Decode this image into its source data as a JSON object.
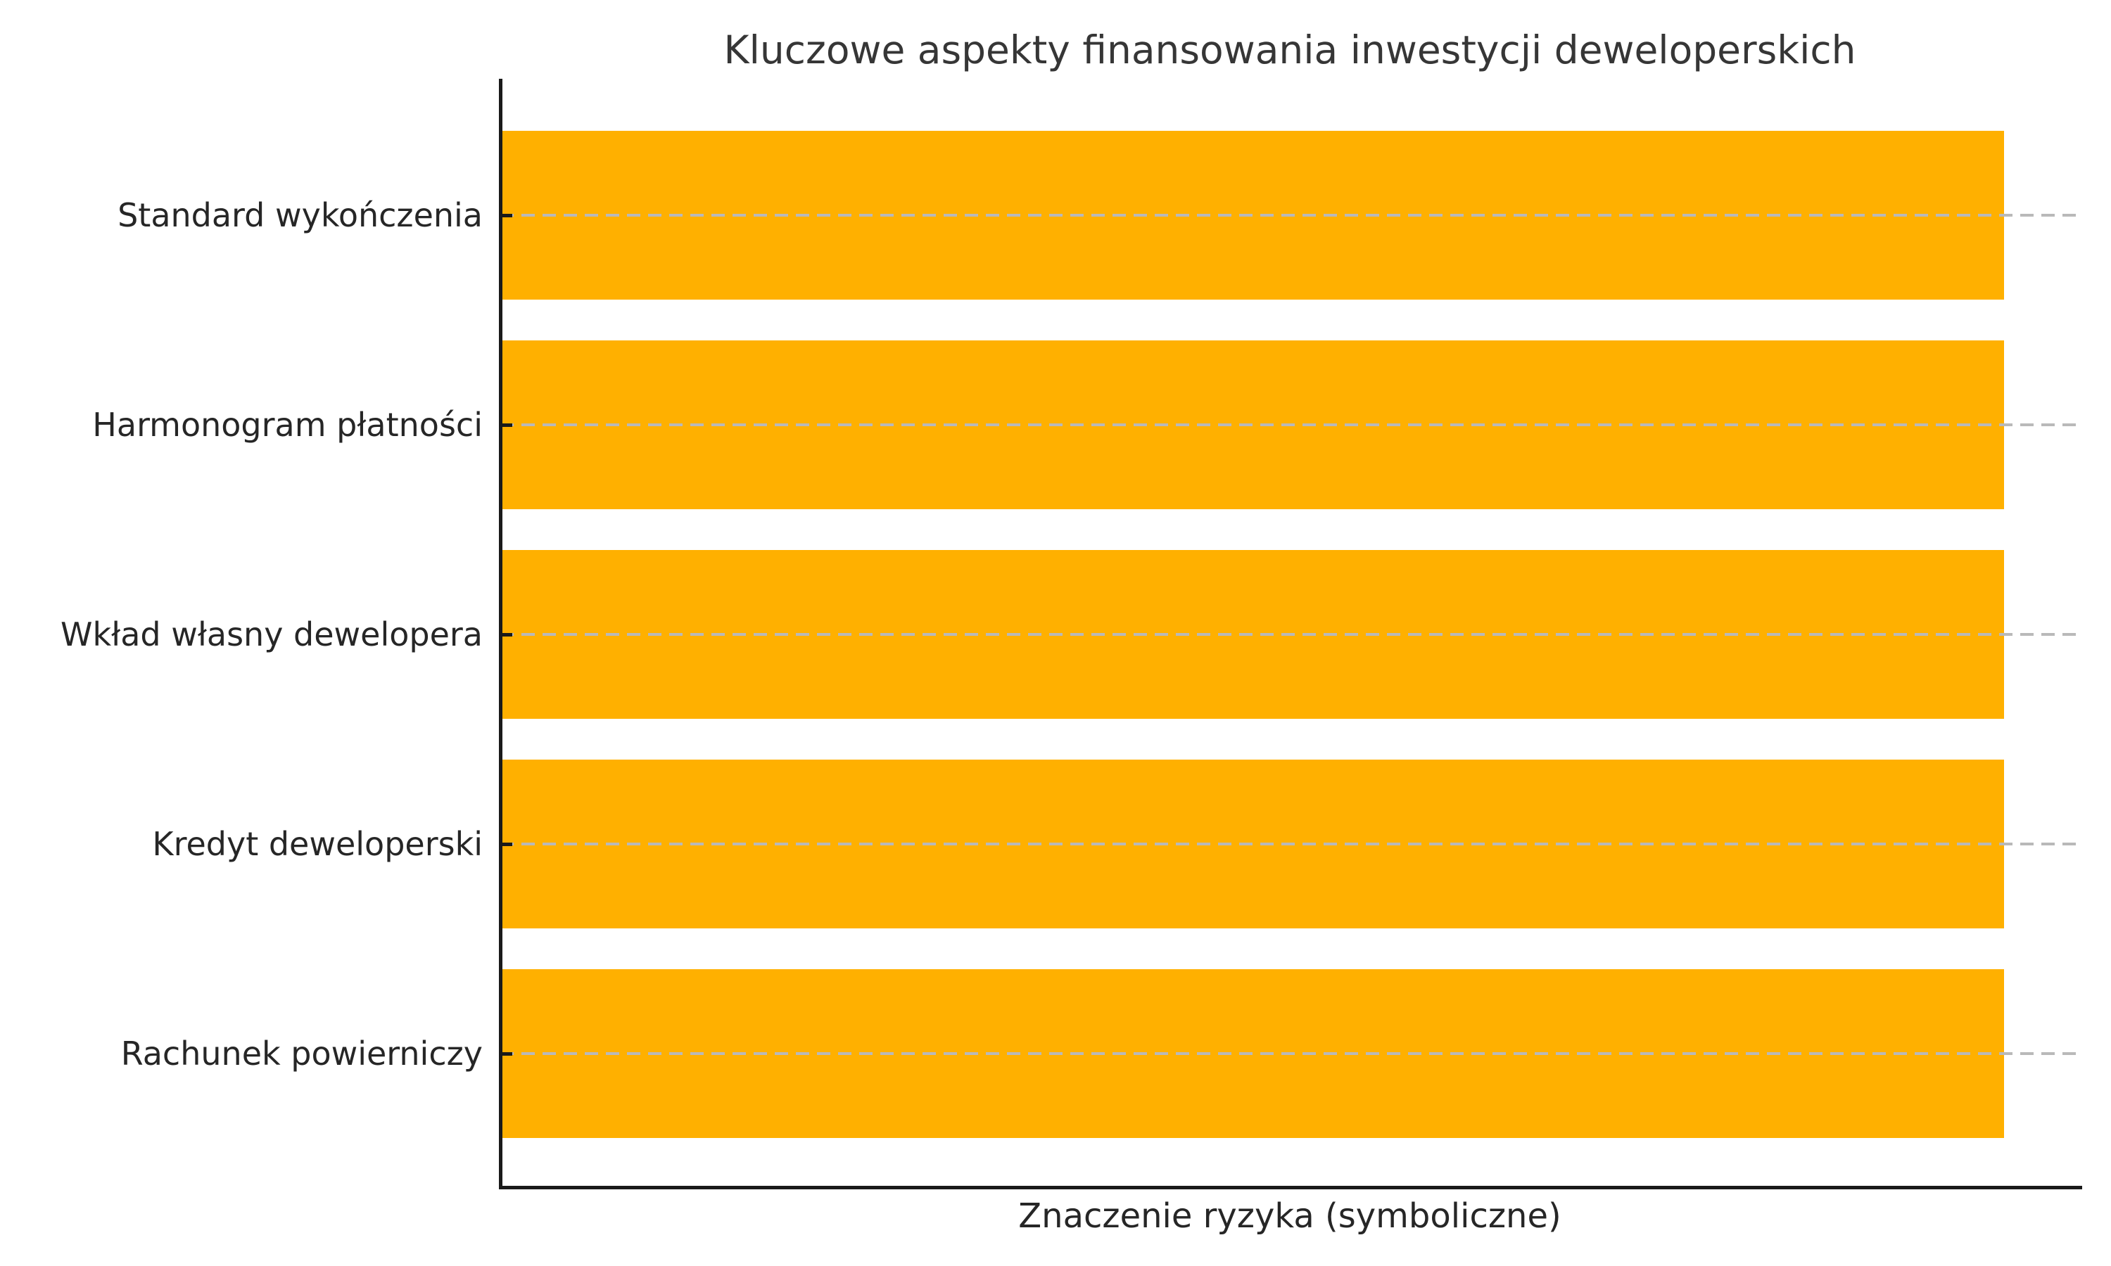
{
  "chart_data": {
    "type": "bar",
    "orientation": "horizontal",
    "title": "Kluczowe aspekty finansowania inwestycji deweloperskich",
    "xlabel": "Znaczenie ryzyka (symboliczne)",
    "ylabel": "",
    "categories": [
      "Standard wykończenia",
      "Harmonogram płatności",
      "Wkład własny dewelopera",
      "Kredyt deweloperski",
      "Rachunek powierniczy"
    ],
    "values": [
      1,
      1,
      1,
      1,
      1
    ],
    "xlim": [
      0,
      1.05
    ],
    "x_tick_labels": [],
    "grid": "horizontal-dashed",
    "legend_position": "none",
    "colors": {
      "bar": "#FFB000",
      "grid": "#b9b9b9",
      "axis": "#1a1a1a",
      "title_text": "#363636",
      "label_text": "#262626",
      "background": "#ffffff"
    }
  }
}
